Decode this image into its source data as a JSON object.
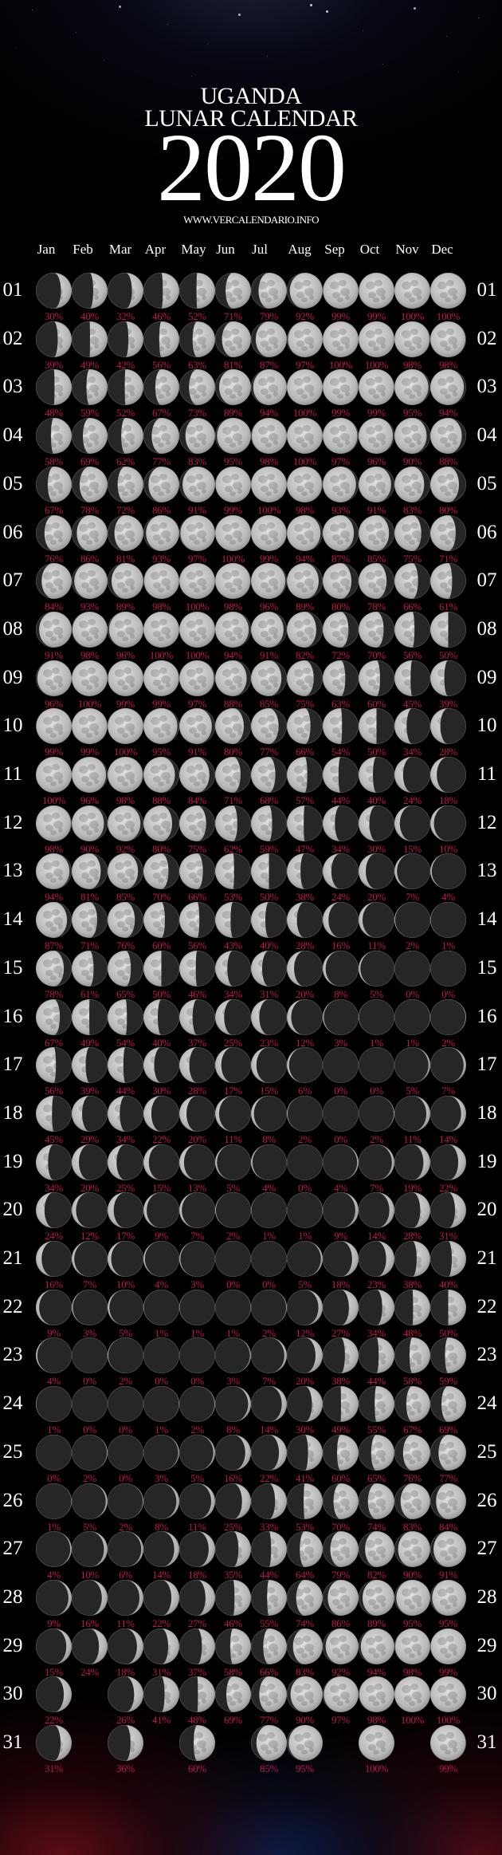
{
  "header": {
    "title_line1": "UGANDA",
    "title_line2": "LUNAR CALENDAR",
    "year": "2020",
    "website": "WWW.VERCALENDARIO.INFO"
  },
  "colors": {
    "background": "#000000",
    "text": "#ffffff",
    "percentage": "#c01552",
    "moon_lit": "#c8c8c8",
    "moon_dark": "#262626"
  },
  "days": [
    "01",
    "02",
    "03",
    "04",
    "05",
    "06",
    "07",
    "08",
    "09",
    "10",
    "11",
    "12",
    "13",
    "14",
    "15",
    "16",
    "17",
    "18",
    "19",
    "20",
    "21",
    "22",
    "23",
    "24",
    "25",
    "26",
    "27",
    "28",
    "29",
    "30",
    "31"
  ],
  "months": [
    {
      "name": "Jan",
      "values": [
        "30%",
        "39%",
        "48%",
        "58%",
        "67%",
        "76%",
        "84%",
        "91%",
        "96%",
        "99%",
        "100%",
        "98%",
        "94%",
        "87%",
        "78%",
        "67%",
        "56%",
        "45%",
        "34%",
        "24%",
        "16%",
        "9%",
        "4%",
        "1%",
        "0%",
        "1%",
        "4%",
        "9%",
        "15%",
        "22%",
        "31%"
      ]
    },
    {
      "name": "Feb",
      "values": [
        "40%",
        "49%",
        "59%",
        "69%",
        "78%",
        "86%",
        "93%",
        "98%",
        "100%",
        "99%",
        "96%",
        "90%",
        "81%",
        "71%",
        "61%",
        "49%",
        "39%",
        "29%",
        "20%",
        "12%",
        "7%",
        "3%",
        "0%",
        "0%",
        "2%",
        "5%",
        "10%",
        "16%",
        "24%"
      ]
    },
    {
      "name": "Mar",
      "values": [
        "32%",
        "42%",
        "52%",
        "62%",
        "72%",
        "81%",
        "89%",
        "96%",
        "99%",
        "100%",
        "98%",
        "92%",
        "85%",
        "76%",
        "65%",
        "54%",
        "44%",
        "34%",
        "25%",
        "17%",
        "10%",
        "5%",
        "2%",
        "0%",
        "0%",
        "2%",
        "6%",
        "11%",
        "18%",
        "26%",
        "36%"
      ]
    },
    {
      "name": "Apr",
      "values": [
        "46%",
        "56%",
        "67%",
        "77%",
        "86%",
        "93%",
        "98%",
        "100%",
        "99%",
        "95%",
        "88%",
        "80%",
        "70%",
        "60%",
        "50%",
        "40%",
        "30%",
        "22%",
        "15%",
        "9%",
        "4%",
        "1%",
        "0%",
        "1%",
        "3%",
        "8%",
        "14%",
        "22%",
        "31%",
        "41%"
      ]
    },
    {
      "name": "May",
      "values": [
        "52%",
        "63%",
        "73%",
        "83%",
        "91%",
        "97%",
        "100%",
        "100%",
        "97%",
        "91%",
        "84%",
        "75%",
        "66%",
        "56%",
        "46%",
        "37%",
        "28%",
        "20%",
        "13%",
        "7%",
        "3%",
        "1%",
        "0%",
        "2%",
        "5%",
        "11%",
        "18%",
        "27%",
        "37%",
        "48%",
        "60%"
      ]
    },
    {
      "name": "Jun",
      "values": [
        "71%",
        "81%",
        "89%",
        "95%",
        "99%",
        "100%",
        "98%",
        "94%",
        "88%",
        "80%",
        "71%",
        "62%",
        "53%",
        "43%",
        "34%",
        "25%",
        "17%",
        "11%",
        "5%",
        "2%",
        "0%",
        "1%",
        "3%",
        "8%",
        "16%",
        "25%",
        "35%",
        "46%",
        "58%",
        "69%"
      ]
    },
    {
      "name": "Jul",
      "values": [
        "79%",
        "87%",
        "94%",
        "98%",
        "100%",
        "99%",
        "96%",
        "91%",
        "85%",
        "77%",
        "68%",
        "59%",
        "50%",
        "40%",
        "31%",
        "23%",
        "15%",
        "8%",
        "4%",
        "1%",
        "0%",
        "2%",
        "7%",
        "14%",
        "22%",
        "33%",
        "44%",
        "55%",
        "66%",
        "77%",
        "85%"
      ]
    },
    {
      "name": "Aug",
      "values": [
        "92%",
        "97%",
        "100%",
        "100%",
        "98%",
        "94%",
        "89%",
        "82%",
        "75%",
        "66%",
        "57%",
        "47%",
        "38%",
        "28%",
        "20%",
        "12%",
        "6%",
        "2%",
        "0%",
        "1%",
        "5%",
        "12%",
        "20%",
        "30%",
        "41%",
        "53%",
        "64%",
        "74%",
        "83%",
        "90%",
        "95%"
      ]
    },
    {
      "name": "Sep",
      "values": [
        "99%",
        "100%",
        "99%",
        "97%",
        "93%",
        "87%",
        "80%",
        "72%",
        "63%",
        "54%",
        "44%",
        "34%",
        "24%",
        "16%",
        "8%",
        "3%",
        "0%",
        "0%",
        "4%",
        "9%",
        "18%",
        "27%",
        "38%",
        "49%",
        "60%",
        "70%",
        "79%",
        "86%",
        "92%",
        "97%"
      ]
    },
    {
      "name": "Oct",
      "values": [
        "99%",
        "100%",
        "99%",
        "96%",
        "91%",
        "85%",
        "78%",
        "70%",
        "60%",
        "50%",
        "40%",
        "30%",
        "20%",
        "11%",
        "5%",
        "1%",
        "0%",
        "2%",
        "7%",
        "14%",
        "23%",
        "34%",
        "44%",
        "55%",
        "65%",
        "74%",
        "82%",
        "89%",
        "94%",
        "98%",
        "100%"
      ]
    },
    {
      "name": "Nov",
      "values": [
        "100%",
        "98%",
        "95%",
        "90%",
        "83%",
        "75%",
        "66%",
        "56%",
        "45%",
        "34%",
        "24%",
        "15%",
        "7%",
        "2%",
        "0%",
        "1%",
        "5%",
        "11%",
        "19%",
        "28%",
        "38%",
        "48%",
        "58%",
        "67%",
        "76%",
        "83%",
        "90%",
        "95%",
        "98%",
        "100%"
      ]
    },
    {
      "name": "Dec",
      "values": [
        "100%",
        "98%",
        "94%",
        "88%",
        "80%",
        "71%",
        "61%",
        "50%",
        "39%",
        "28%",
        "18%",
        "10%",
        "4%",
        "1%",
        "0%",
        "2%",
        "7%",
        "14%",
        "22%",
        "31%",
        "40%",
        "50%",
        "59%",
        "69%",
        "77%",
        "84%",
        "91%",
        "95%",
        "99%",
        "100%",
        "99%"
      ]
    }
  ]
}
